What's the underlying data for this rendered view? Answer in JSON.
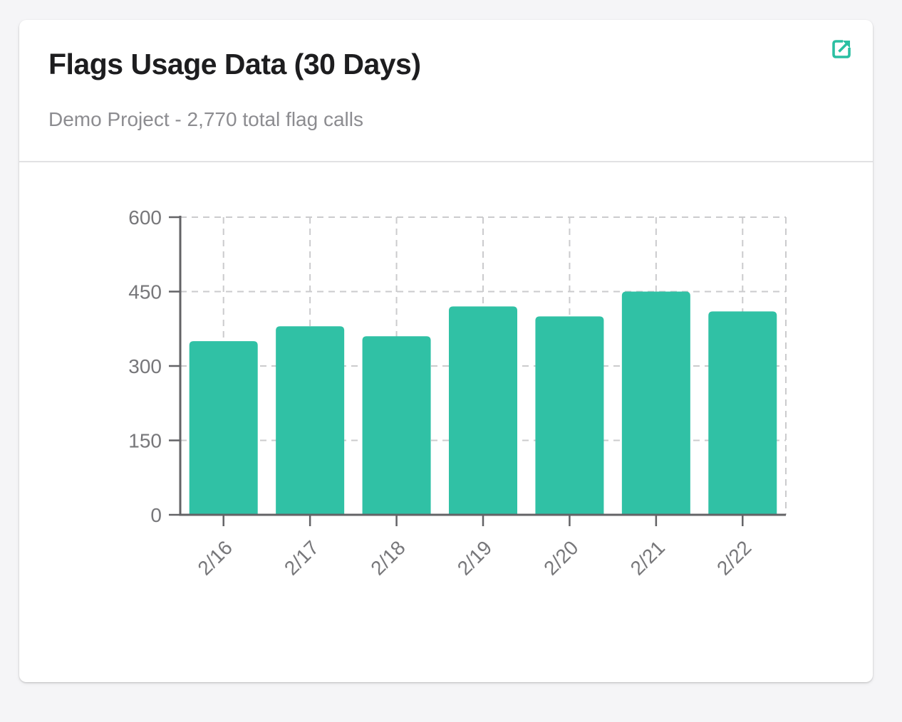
{
  "card": {
    "title": "Flags Usage Data (30 Days)",
    "subtitle": "Demo Project - 2,770 total flag calls",
    "action_icon": "external-link-icon"
  },
  "colors": {
    "accent_teal": "#2ABFA2",
    "bar_fill": "#30C1A5",
    "axis": "#636366",
    "grid": "#CBCBCD",
    "tick_label": "#77777A",
    "title_text": "#1D1D1F",
    "subtitle_text": "#8C8C90",
    "card_background": "#FFFFFF",
    "page_background": "#F5F5F7"
  },
  "chart_data": {
    "type": "bar",
    "title": "Flags Usage Data (30 Days)",
    "categories": [
      "2/16",
      "2/17",
      "2/18",
      "2/19",
      "2/20",
      "2/21",
      "2/22"
    ],
    "values": [
      350,
      380,
      360,
      420,
      400,
      450,
      410
    ],
    "total": 2770,
    "xlabel": "",
    "ylabel": "",
    "ylim": [
      0,
      600
    ],
    "yticks": [
      0,
      150,
      300,
      450,
      600
    ],
    "grid": "dashed",
    "legend": "none",
    "x_tick_rotation": -45
  }
}
